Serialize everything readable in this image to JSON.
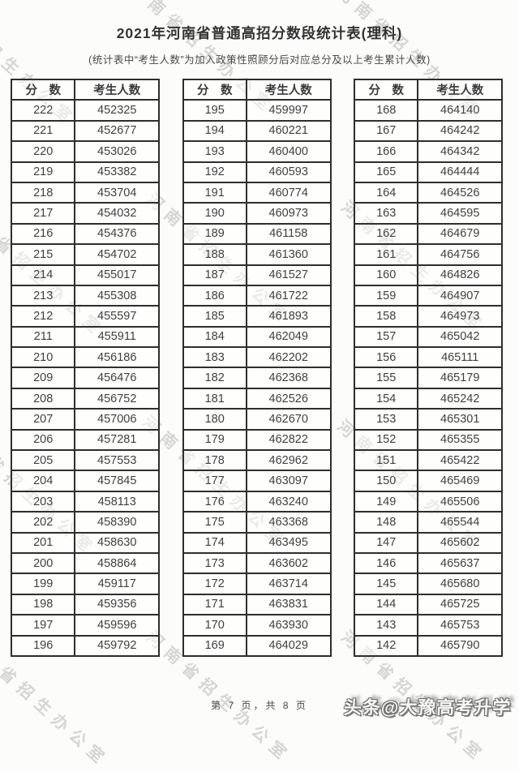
{
  "page": {
    "title": "2021年河南省普通高招分数段统计表(理科)",
    "subtitle": "(统计表中“考生人数”为加入政策性照顾分后对应总分及以上考生累计人数)",
    "footer_page_info": "第 7 页，共 8 页",
    "diagonal_watermark": "河南省招生办公室",
    "corner_watermark": "头条@大豫高考升学"
  },
  "table_headers": {
    "score": "分　数",
    "count": "考生人数"
  },
  "tables": [
    {
      "rows": [
        [
          222,
          452325
        ],
        [
          221,
          452677
        ],
        [
          220,
          453026
        ],
        [
          219,
          453382
        ],
        [
          218,
          453704
        ],
        [
          217,
          454032
        ],
        [
          216,
          454376
        ],
        [
          215,
          454702
        ],
        [
          214,
          455017
        ],
        [
          213,
          455308
        ],
        [
          212,
          455597
        ],
        [
          211,
          455911
        ],
        [
          210,
          456186
        ],
        [
          209,
          456476
        ],
        [
          208,
          456752
        ],
        [
          207,
          457006
        ],
        [
          206,
          457281
        ],
        [
          205,
          457553
        ],
        [
          204,
          457845
        ],
        [
          203,
          458113
        ],
        [
          202,
          458390
        ],
        [
          201,
          458630
        ],
        [
          200,
          458864
        ],
        [
          199,
          459117
        ],
        [
          198,
          459356
        ],
        [
          197,
          459596
        ],
        [
          196,
          459792
        ]
      ]
    },
    {
      "rows": [
        [
          195,
          459997
        ],
        [
          194,
          460221
        ],
        [
          193,
          460400
        ],
        [
          192,
          460593
        ],
        [
          191,
          460774
        ],
        [
          190,
          460973
        ],
        [
          189,
          461158
        ],
        [
          188,
          461360
        ],
        [
          187,
          461527
        ],
        [
          186,
          461722
        ],
        [
          185,
          461893
        ],
        [
          184,
          462049
        ],
        [
          183,
          462202
        ],
        [
          182,
          462368
        ],
        [
          181,
          462526
        ],
        [
          180,
          462670
        ],
        [
          179,
          462822
        ],
        [
          178,
          462962
        ],
        [
          177,
          463097
        ],
        [
          176,
          463240
        ],
        [
          175,
          463368
        ],
        [
          174,
          463495
        ],
        [
          173,
          463602
        ],
        [
          172,
          463714
        ],
        [
          171,
          463831
        ],
        [
          170,
          463930
        ],
        [
          169,
          464029
        ]
      ]
    },
    {
      "rows": [
        [
          168,
          464140
        ],
        [
          167,
          464242
        ],
        [
          166,
          464342
        ],
        [
          165,
          464444
        ],
        [
          164,
          464526
        ],
        [
          163,
          464595
        ],
        [
          162,
          464679
        ],
        [
          161,
          464756
        ],
        [
          160,
          464826
        ],
        [
          159,
          464907
        ],
        [
          158,
          464973
        ],
        [
          157,
          465042
        ],
        [
          156,
          465111
        ],
        [
          155,
          465179
        ],
        [
          154,
          465242
        ],
        [
          153,
          465301
        ],
        [
          152,
          465355
        ],
        [
          151,
          465422
        ],
        [
          150,
          465469
        ],
        [
          149,
          465506
        ],
        [
          148,
          465544
        ],
        [
          147,
          465602
        ],
        [
          146,
          465637
        ],
        [
          145,
          465680
        ],
        [
          144,
          465725
        ],
        [
          143,
          465753
        ],
        [
          142,
          465790
        ]
      ]
    }
  ]
}
